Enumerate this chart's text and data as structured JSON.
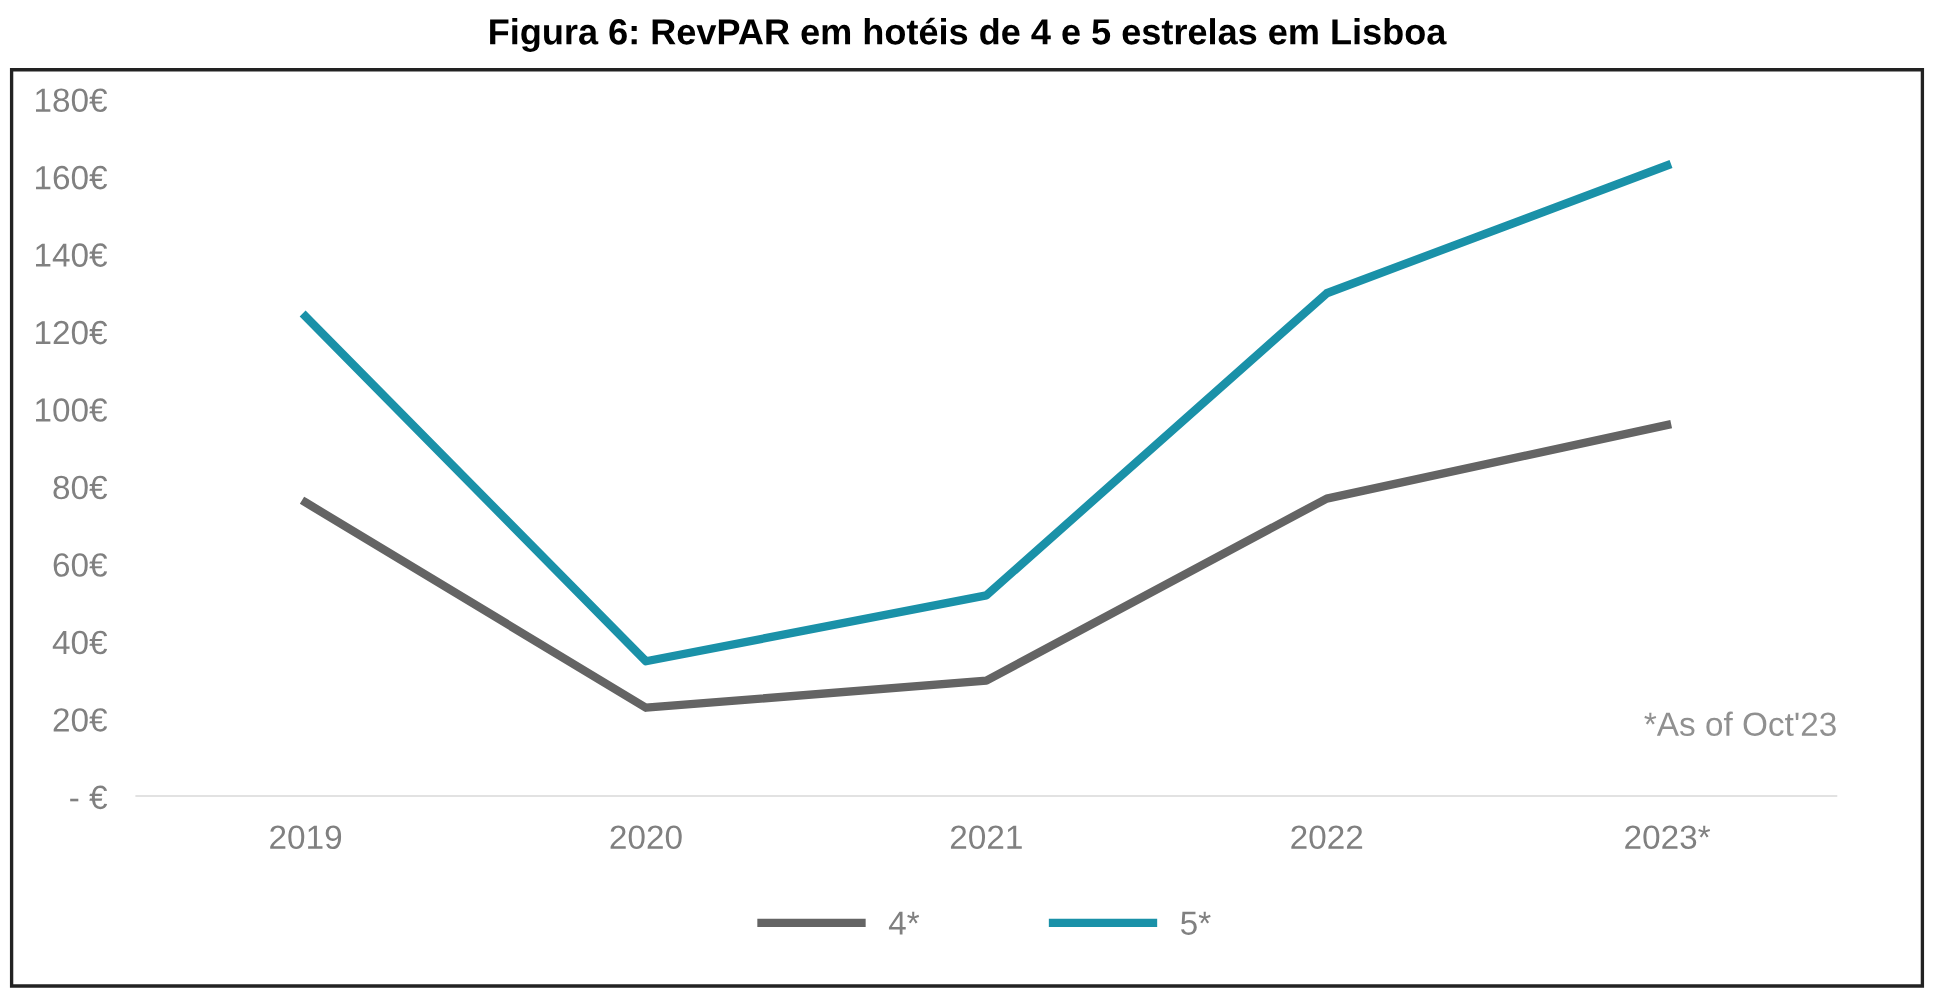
{
  "chart_data": {
    "type": "line",
    "title": "Figura 6: RevPAR em hotéis de 4 e 5 estrelas em Lisboa",
    "categories": [
      "2019",
      "2020",
      "2021",
      "2022",
      "2023*"
    ],
    "series": [
      {
        "name": "4*",
        "color": "#646464",
        "values": [
          76,
          23,
          30,
          77,
          96
        ]
      },
      {
        "name": "5*",
        "color": "#1a91a8",
        "values": [
          124,
          35,
          52,
          130,
          163
        ]
      }
    ],
    "ylim": [
      0,
      180
    ],
    "yticks": [
      {
        "value": 0,
        "label": "- €"
      },
      {
        "value": 20,
        "label": "20€"
      },
      {
        "value": 40,
        "label": "40€"
      },
      {
        "value": 60,
        "label": "60€"
      },
      {
        "value": 80,
        "label": "80€"
      },
      {
        "value": 100,
        "label": "100€"
      },
      {
        "value": 120,
        "label": "120€"
      },
      {
        "value": 140,
        "label": "140€"
      },
      {
        "value": 160,
        "label": "160€"
      },
      {
        "value": 180,
        "label": "180€"
      }
    ],
    "grid": false,
    "legend": "bottom",
    "marker": "none",
    "line_style": "solid",
    "annotations": [
      "*As of Oct'23"
    ]
  }
}
